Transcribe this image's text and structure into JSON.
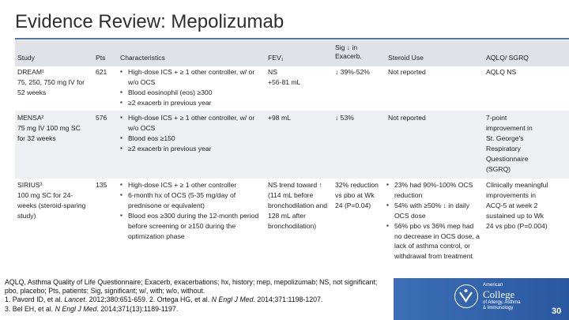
{
  "slide": {
    "title": "Evidence Review: Mepolizumab",
    "page_number": "30"
  },
  "table": {
    "headers": {
      "study": "Study",
      "pts": "Pts",
      "characteristics": "Characteristics",
      "fev1": "FEV₁",
      "sig": "Sig ↓ in Exacerb.",
      "steroid": "Steroid Use",
      "aqlq": "AQLQ/ SGRQ"
    },
    "rows": [
      {
        "study": "DREAM¹\n75, 250, 750 mg IV for 52 weeks",
        "pts": "621",
        "characteristics": [
          "High-dose ICS + ≥ 1 other controller, w/ or w/o OCS",
          "Blood eosinophil (eos) ≥300",
          "≥2 exacerb in previous year"
        ],
        "fev1": "NS\n+56-81 mL",
        "sig": "↓ 39%-52%",
        "steroid": "Not reported",
        "aqlq": "AQLQ NS"
      },
      {
        "study": "MENSA²\n75 mg IV 100 mg SC for 32 weeks",
        "pts": "576",
        "characteristics": [
          "High-dose ICS + ≥ 1 other controller, w/ or w/o OCS",
          "Blood eos ≥150",
          "≥2 exacerb in previous year"
        ],
        "fev1": "+98 mL",
        "sig": "↓ 53%",
        "steroid": "Not reported",
        "aqlq": "7-point improvement in St. George's Respiratory Questionnaire (SGRQ)"
      },
      {
        "study": "SIRIUS³\n100 mg SC for 24-weeks (steroid-sparing study)",
        "pts": "135",
        "characteristics": [
          "High-dose ICS + ≥ 1 other controller",
          "6-month hx of OCS (5-35 mg/day of prednisone or equivalent)",
          "Blood eos ≥300 during the 12-month period before screening or ≥150 during the optimization phase"
        ],
        "fev1": "NS trend toward ↑ (114 mL before bronchodilation and 128 mL after bronchodilation)",
        "sig": "32% reduction vs pbo at Wk 24 (P=0.04)",
        "steroid": [
          "23% had 90%-100% OCS reduction",
          "54% with ≥50% ↓ in daily OCS dose",
          "56% pbo vs 36% mep had no decrease in OCS dose, a lack of asthma control, or withdrawal from treatment"
        ],
        "aqlq": "Clinically meaningful improvements in ACQ-5 at week 2 sustained up to Wk 24 vs pbo (P=0.004)"
      }
    ]
  },
  "footnotes": {
    "abbrev": "AQLQ, Asthma Quality of Life Questionnaire; Exacerb, exacerbations; hx, history; mep, mepolizumab; NS, not significant; pbo, placebo; Pts, patients; Sig, significant; w/, with; w/o, without.",
    "ref1_pre": "1. Pavord ID, et al. ",
    "ref1_journal": "Lancet",
    "ref1_post": ". 2012;380:651-659. 2. Ortega HG, et al. ",
    "ref2_journal": "N Engl J Med",
    "ref2_post": ". 2014;371:1198-1207.",
    "ref3_pre": "3. Bel EH, et al. ",
    "ref3_journal": "N Engl J Med",
    "ref3_post": ". 2014;371(13):1189-1197."
  },
  "logo": {
    "line1": "American",
    "line2": "College",
    "line3": "of Allergy, Asthma",
    "line4": "& Immunology"
  },
  "colors": {
    "accent": "#4a76b8",
    "bar": "#2f5fa8"
  }
}
